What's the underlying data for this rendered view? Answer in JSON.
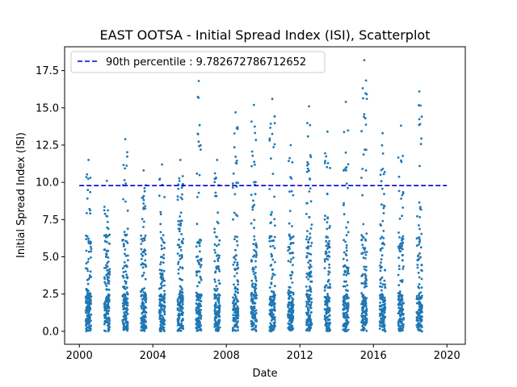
{
  "chart_data": {
    "type": "scatter",
    "title": "EAST OOTSA - Initial Spread Index (ISI), Scatterplot",
    "xlabel": "Date",
    "ylabel": "Initial Spread Index (ISI)",
    "xlim": [
      1999.2,
      2021.0
    ],
    "ylim": [
      -0.87,
      19.1
    ],
    "xticks": [
      2000,
      2004,
      2008,
      2012,
      2016,
      2020
    ],
    "xtick_labels": [
      "2000",
      "2004",
      "2008",
      "2012",
      "2016",
      "2020"
    ],
    "yticks": [
      0.0,
      2.5,
      5.0,
      7.5,
      10.0,
      12.5,
      15.0,
      17.5
    ],
    "ytick_labels": [
      "0.0",
      "2.5",
      "5.0",
      "7.5",
      "10.0",
      "12.5",
      "15.0",
      "17.5"
    ],
    "grid": false,
    "legend_position": "top-left",
    "percentile_line": {
      "label": "90th percentile : 9.782672786712652",
      "value": 9.782672786712652,
      "x_range": [
        2000.0,
        2020.0
      ],
      "style": "dashed",
      "color": "#0000cc"
    },
    "series_color": "#1f77b4",
    "seasons": [
      {
        "year": 2000,
        "x_start": 2000.35,
        "x_end": 2000.65,
        "max": 11.5
      },
      {
        "year": 2001,
        "x_start": 2001.35,
        "x_end": 2001.65,
        "max": 10.1
      },
      {
        "year": 2002,
        "x_start": 2002.35,
        "x_end": 2002.65,
        "max": 12.9
      },
      {
        "year": 2003,
        "x_start": 2003.35,
        "x_end": 2003.65,
        "max": 10.8
      },
      {
        "year": 2004,
        "x_start": 2004.35,
        "x_end": 2004.65,
        "max": 11.2
      },
      {
        "year": 2005,
        "x_start": 2005.35,
        "x_end": 2005.65,
        "max": 11.5
      },
      {
        "year": 2006,
        "x_start": 2006.35,
        "x_end": 2006.65,
        "max": 16.8
      },
      {
        "year": 2007,
        "x_start": 2007.35,
        "x_end": 2007.65,
        "max": 11.5
      },
      {
        "year": 2008,
        "x_start": 2008.35,
        "x_end": 2008.65,
        "max": 14.7
      },
      {
        "year": 2009,
        "x_start": 2009.35,
        "x_end": 2009.65,
        "max": 15.2
      },
      {
        "year": 2010,
        "x_start": 2010.35,
        "x_end": 2010.65,
        "max": 15.6
      },
      {
        "year": 2011,
        "x_start": 2011.35,
        "x_end": 2011.65,
        "max": 12.5
      },
      {
        "year": 2012,
        "x_start": 2012.35,
        "x_end": 2012.65,
        "max": 15.1
      },
      {
        "year": 2013,
        "x_start": 2013.35,
        "x_end": 2013.65,
        "max": 13.4
      },
      {
        "year": 2014,
        "x_start": 2014.35,
        "x_end": 2014.65,
        "max": 15.4
      },
      {
        "year": 2015,
        "x_start": 2015.35,
        "x_end": 2015.65,
        "max": 18.2
      },
      {
        "year": 2016,
        "x_start": 2016.35,
        "x_end": 2016.65,
        "max": 13.3
      },
      {
        "year": 2017,
        "x_start": 2017.35,
        "x_end": 2017.65,
        "max": 13.8
      },
      {
        "year": 2018,
        "x_start": 2018.35,
        "x_end": 2018.65,
        "max": 16.1
      }
    ]
  }
}
